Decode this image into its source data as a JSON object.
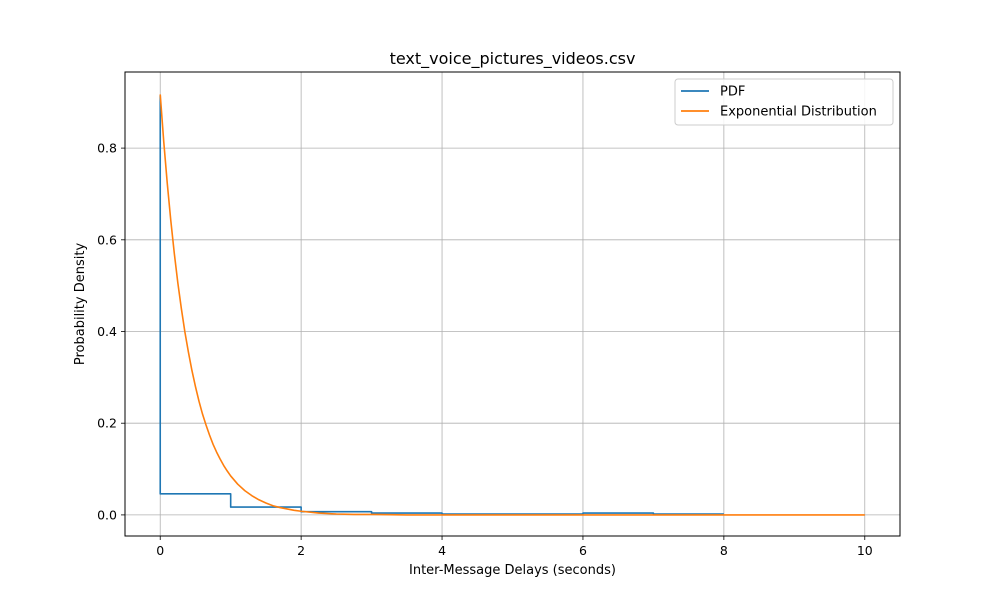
{
  "chart_data": {
    "type": "line",
    "title": "text_voice_pictures_videos.csv",
    "xlabel": "Inter-Message Delays (seconds)",
    "ylabel": "Probability Density",
    "xlim": [
      -0.5,
      10.5
    ],
    "ylim": [
      -0.046,
      0.966
    ],
    "xticks": [
      0,
      2,
      4,
      6,
      8,
      10
    ],
    "yticks": [
      0.0,
      0.2,
      0.4,
      0.6,
      0.8
    ],
    "xtick_labels": [
      "0",
      "2",
      "4",
      "6",
      "8",
      "10"
    ],
    "ytick_labels": [
      "0.0",
      "0.2",
      "0.4",
      "0.6",
      "0.8"
    ],
    "grid": true,
    "legend_position": "top-right",
    "series": [
      {
        "name": "PDF",
        "kind": "step",
        "color": "#1f77b4",
        "x": [
          0,
          0,
          1,
          1,
          2,
          2,
          3,
          3,
          4,
          4,
          5,
          5,
          6,
          6,
          7,
          7,
          8
        ],
        "y": [
          0.915,
          0.046,
          0.046,
          0.017,
          0.017,
          0.007,
          0.007,
          0.004,
          0.004,
          0.002,
          0.002,
          0.002,
          0.002,
          0.004,
          0.004,
          0.002,
          0.002
        ]
      },
      {
        "name": "Exponential Distribution",
        "kind": "curve",
        "color": "#ff7f0e",
        "x": [
          0,
          0.05,
          0.1,
          0.15,
          0.2,
          0.25,
          0.3,
          0.35,
          0.4,
          0.45,
          0.5,
          0.55,
          0.6,
          0.65,
          0.7,
          0.75,
          0.8,
          0.85,
          0.9,
          0.95,
          1.0,
          1.1,
          1.2,
          1.3,
          1.4,
          1.5,
          1.6,
          1.7,
          1.8,
          1.9,
          2.0,
          2.25,
          2.5,
          2.75,
          3.0,
          3.5,
          4.0,
          5.0,
          6.0,
          7.0,
          8.0,
          9.0,
          10.0
        ],
        "y": [
          0.917,
          0.814,
          0.723,
          0.642,
          0.57,
          0.506,
          0.45,
          0.399,
          0.355,
          0.315,
          0.28,
          0.248,
          0.22,
          0.196,
          0.174,
          0.154,
          0.137,
          0.122,
          0.108,
          0.096,
          0.085,
          0.067,
          0.053,
          0.042,
          0.033,
          0.026,
          0.02,
          0.016,
          0.013,
          0.01,
          0.008,
          0.004,
          0.002,
          0.001,
          0.001,
          0.0,
          0.0,
          0.0,
          0.0,
          0.0,
          0.0,
          0.0,
          0.0
        ]
      }
    ]
  }
}
